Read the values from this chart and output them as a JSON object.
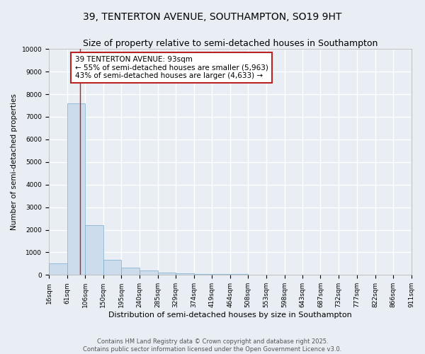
{
  "title1": "39, TENTERTON AVENUE, SOUTHAMPTON, SO19 9HT",
  "title2": "Size of property relative to semi-detached houses in Southampton",
  "xlabel": "Distribution of semi-detached houses by size in Southampton",
  "ylabel": "Number of semi-detached properties",
  "bin_edges": [
    16,
    61,
    106,
    150,
    195,
    240,
    285,
    329,
    374,
    419,
    464,
    508,
    553,
    598,
    643,
    687,
    732,
    777,
    822,
    866,
    911
  ],
  "bar_heights": [
    500,
    7600,
    2200,
    680,
    310,
    190,
    110,
    75,
    55,
    40,
    30,
    22,
    17,
    13,
    10,
    8,
    7,
    5,
    4,
    3
  ],
  "bar_color": "#ccdcec",
  "bar_edge_color": "#7aadcc",
  "vline_x": 93,
  "vline_color": "#bb2222",
  "annotation_text": "39 TENTERTON AVENUE: 93sqm\n← 55% of semi-detached houses are smaller (5,963)\n43% of semi-detached houses are larger (4,633) →",
  "annotation_box_color": "white",
  "annotation_box_edge": "#bb2222",
  "ylim": [
    0,
    10000
  ],
  "yticks": [
    0,
    1000,
    2000,
    3000,
    4000,
    5000,
    6000,
    7000,
    8000,
    9000,
    10000
  ],
  "background_color": "#e8eef4",
  "grid_color": "white",
  "footer": "Contains HM Land Registry data © Crown copyright and database right 2025.\nContains public sector information licensed under the Open Government Licence v3.0.",
  "title1_fontsize": 10,
  "title2_fontsize": 9,
  "annot_fontsize": 7.5,
  "footer_fontsize": 6,
  "tick_fontsize": 6.5,
  "ylabel_fontsize": 7.5,
  "xlabel_fontsize": 8
}
